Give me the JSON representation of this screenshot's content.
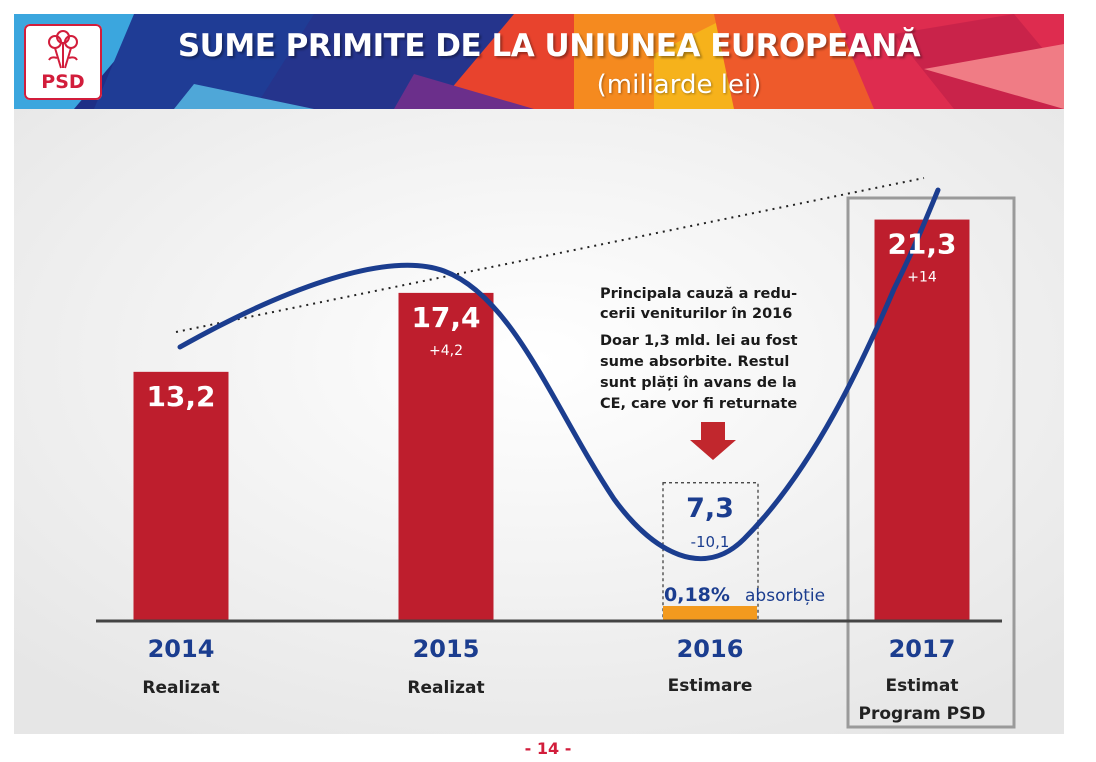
{
  "header": {
    "title": "SUME PRIMITE DE LA UNIUNEA EUROPEANĂ",
    "subtitle": "(miliarde lei)",
    "logo_text": "PSD",
    "logo_icon": "rose-icon"
  },
  "colors": {
    "bar": "#be1e2d",
    "curve": "#1b3d8f",
    "accent_orange": "#f39a1e",
    "background": "#eeeeee",
    "logo_red": "#d21d3b"
  },
  "chart_data": {
    "type": "bar",
    "title": "SUME PRIMITE DE LA UNIUNEA EUROPEANĂ",
    "subtitle": "(miliarde lei)",
    "categories": [
      "2014",
      "2015",
      "2016",
      "2017"
    ],
    "category_notes": [
      "Realizat",
      "Realizat",
      "Estimare",
      "Estimat Program PSD"
    ],
    "values": [
      13.2,
      17.4,
      7.3,
      21.3
    ],
    "value_labels": [
      "13,2",
      "17,4",
      "7,3",
      "21,3"
    ],
    "deltas": [
      "",
      "+4,2",
      "-10,1",
      "+14"
    ],
    "ylim": [
      0,
      30
    ],
    "grid": false,
    "annotations": {
      "cause_title_lines": [
        "Principala cauză a redu-",
        "cerii veniturilor în 2016"
      ],
      "cause_body_lines": [
        "Doar 1,3 mld. lei au fost",
        "sume absorbite. Restul",
        "sunt plăți în avans de la",
        "CE, care vor fi returnate"
      ],
      "absorption_percent": "0,18%",
      "absorption_label": "absorbție",
      "absorption_value": 0.18
    }
  },
  "footer": {
    "page_label": "- 14 -"
  }
}
